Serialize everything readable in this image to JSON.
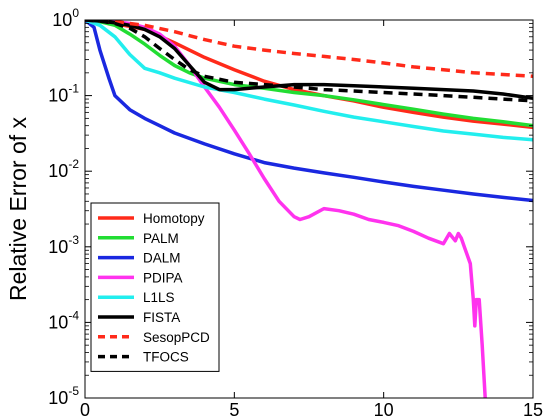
{
  "chart_data": {
    "type": "line",
    "title": "",
    "xlabel": "",
    "ylabel": "Relative Error of x",
    "xlim": [
      0,
      15
    ],
    "ylim": [
      1e-05,
      1
    ],
    "yscale": "log",
    "grid": false,
    "legend_position": "bottom-left",
    "x_ticks": [
      {
        "value": 0,
        "label": "0"
      },
      {
        "value": 5,
        "label": "5"
      },
      {
        "value": 10,
        "label": "10"
      },
      {
        "value": 15,
        "label": "15"
      }
    ],
    "y_ticks": [
      {
        "value": 1,
        "base": "10",
        "exp": "0"
      },
      {
        "value": 0.1,
        "base": "10",
        "exp": "-1"
      },
      {
        "value": 0.01,
        "base": "10",
        "exp": "-2"
      },
      {
        "value": 0.001,
        "base": "10",
        "exp": "-3"
      },
      {
        "value": 0.0001,
        "base": "10",
        "exp": "-4"
      },
      {
        "value": 1e-05,
        "base": "10",
        "exp": "-5"
      }
    ],
    "series": [
      {
        "name": "Homotopy",
        "color": "#ff2a1a",
        "dashed": false,
        "x": [
          0,
          0.5,
          1,
          2,
          3,
          4,
          5,
          6,
          7,
          8,
          9,
          10,
          11,
          12,
          13,
          14,
          15
        ],
        "y": [
          1,
          0.95,
          0.9,
          0.75,
          0.5,
          0.32,
          0.22,
          0.155,
          0.12,
          0.1,
          0.085,
          0.07,
          0.06,
          0.052,
          0.046,
          0.042,
          0.038
        ]
      },
      {
        "name": "PALM",
        "color": "#22dd33",
        "dashed": false,
        "x": [
          0,
          0.5,
          1,
          1.5,
          2,
          2.5,
          3,
          3.5,
          4,
          5,
          6,
          7,
          8,
          9,
          10,
          11,
          12,
          13,
          14,
          15
        ],
        "y": [
          1,
          0.95,
          0.85,
          0.65,
          0.48,
          0.34,
          0.25,
          0.2,
          0.17,
          0.14,
          0.125,
          0.11,
          0.1,
          0.088,
          0.076,
          0.066,
          0.057,
          0.05,
          0.045,
          0.04
        ]
      },
      {
        "name": "DALM",
        "color": "#1a28e0",
        "dashed": false,
        "x": [
          0,
          0.3,
          0.5,
          0.8,
          1,
          1.5,
          2,
          2.5,
          3,
          4,
          5,
          6,
          7,
          8,
          9,
          10,
          11,
          12,
          13,
          14,
          15
        ],
        "y": [
          1,
          0.8,
          0.4,
          0.17,
          0.1,
          0.065,
          0.05,
          0.04,
          0.032,
          0.023,
          0.017,
          0.013,
          0.011,
          0.0095,
          0.0083,
          0.0072,
          0.0063,
          0.0056,
          0.005,
          0.0045,
          0.0041
        ]
      },
      {
        "name": "PDIPA",
        "color": "#ff33ee",
        "dashed": false,
        "x": [
          0,
          1,
          1.5,
          2,
          2.5,
          3,
          3.5,
          4,
          4.5,
          5,
          5.5,
          6,
          6.5,
          7,
          7.2,
          7.5,
          8,
          8.5,
          9,
          9.5,
          10,
          10.5,
          11,
          11.5,
          12,
          12.2,
          12.4,
          12.5,
          12.6,
          12.7,
          12.9,
          13,
          13.05,
          13.1,
          13.2,
          13.3,
          13.4
        ],
        "y": [
          1,
          0.95,
          0.9,
          0.8,
          0.65,
          0.45,
          0.25,
          0.13,
          0.07,
          0.035,
          0.017,
          0.008,
          0.004,
          0.0025,
          0.0023,
          0.0025,
          0.0032,
          0.003,
          0.0027,
          0.0023,
          0.0021,
          0.0019,
          0.0016,
          0.0013,
          0.0011,
          0.0015,
          0.0012,
          0.0015,
          0.0013,
          0.001,
          0.0006,
          0.0002,
          9e-05,
          0.0002,
          0.0002,
          5e-05,
          1e-05
        ]
      },
      {
        "name": "L1LS",
        "color": "#22eeee",
        "dashed": false,
        "x": [
          0,
          0.5,
          1,
          1.5,
          2,
          2.5,
          3,
          4,
          5,
          6,
          7,
          8,
          9,
          10,
          11,
          12,
          13,
          14,
          15
        ],
        "y": [
          1,
          0.85,
          0.6,
          0.35,
          0.23,
          0.2,
          0.17,
          0.13,
          0.11,
          0.09,
          0.075,
          0.062,
          0.052,
          0.045,
          0.039,
          0.034,
          0.031,
          0.028,
          0.026
        ]
      },
      {
        "name": "FISTA",
        "color": "#000000",
        "dashed": false,
        "x": [
          0,
          0.5,
          1,
          1.5,
          2,
          2.5,
          3,
          3.5,
          4,
          4.5,
          5,
          6,
          7,
          8,
          9,
          10,
          11,
          12,
          13,
          14,
          15
        ],
        "y": [
          1,
          0.97,
          0.92,
          0.85,
          0.75,
          0.6,
          0.42,
          0.25,
          0.15,
          0.12,
          0.12,
          0.13,
          0.14,
          0.14,
          0.135,
          0.13,
          0.125,
          0.12,
          0.115,
          0.105,
          0.092
        ]
      },
      {
        "name": "SesopPCD",
        "color": "#ff2a1a",
        "dashed": true,
        "x": [
          0,
          1,
          2,
          3,
          4,
          5,
          6,
          7,
          8,
          9,
          10,
          11,
          12,
          13,
          14,
          15
        ],
        "y": [
          1,
          0.95,
          0.85,
          0.7,
          0.55,
          0.45,
          0.4,
          0.36,
          0.33,
          0.3,
          0.27,
          0.24,
          0.22,
          0.2,
          0.19,
          0.18
        ]
      },
      {
        "name": "TFOCS",
        "color": "#000000",
        "dashed": true,
        "x": [
          0,
          0.5,
          1,
          1.5,
          2,
          2.5,
          3,
          3.5,
          4,
          5,
          6,
          7,
          8,
          9,
          10,
          11,
          12,
          13,
          14,
          15
        ],
        "y": [
          1,
          0.97,
          0.9,
          0.78,
          0.6,
          0.42,
          0.3,
          0.22,
          0.18,
          0.15,
          0.14,
          0.13,
          0.12,
          0.115,
          0.11,
          0.105,
          0.1,
          0.095,
          0.09,
          0.085
        ]
      }
    ]
  }
}
